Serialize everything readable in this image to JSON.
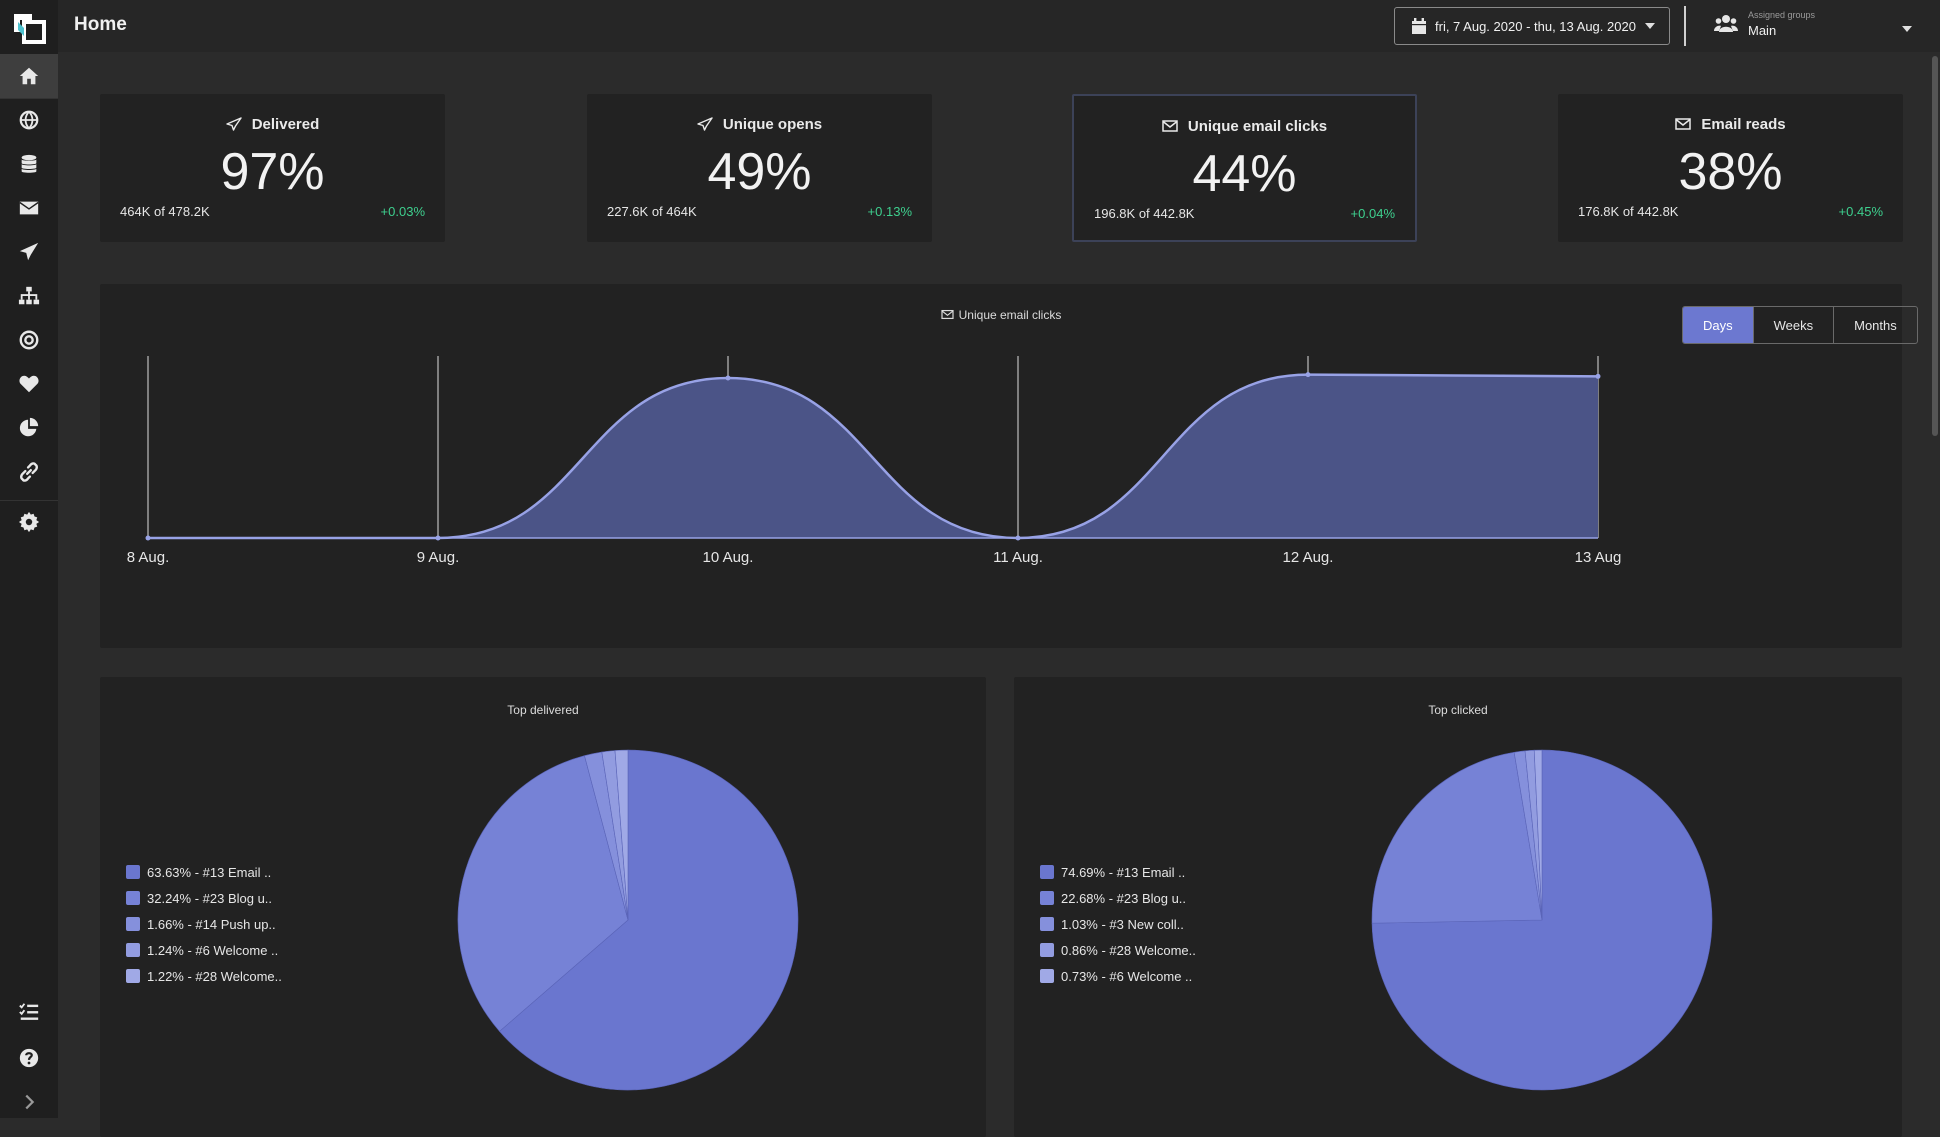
{
  "header": {
    "title": "Home",
    "date_range": "fri, 7 Aug. 2020 - thu, 13 Aug. 2020",
    "groups_label": "Assigned groups",
    "groups_value": "Main"
  },
  "sidebar": {
    "items": [
      {
        "name": "home-icon",
        "active": true
      },
      {
        "name": "globe-icon"
      },
      {
        "name": "database-icon"
      },
      {
        "name": "envelope-icon"
      },
      {
        "name": "paper-plane-icon"
      },
      {
        "name": "sitemap-icon"
      },
      {
        "name": "target-icon"
      },
      {
        "name": "heart-icon"
      },
      {
        "name": "pie-chart-icon"
      },
      {
        "name": "link-icon"
      },
      {
        "name": "gear-icon"
      },
      {
        "name": "task-list-icon"
      },
      {
        "name": "help-icon"
      },
      {
        "name": "chevron-right-icon"
      }
    ]
  },
  "kpis": [
    {
      "title": "Delivered",
      "icon": "paper-plane-icon",
      "value": "97%",
      "sub": "464K of 478.2K",
      "delta": "+0.03%"
    },
    {
      "title": "Unique opens",
      "icon": "paper-plane-icon",
      "value": "49%",
      "sub": "227.6K of 464K",
      "delta": "+0.13%"
    },
    {
      "title": "Unique email clicks",
      "icon": "envelope-icon",
      "value": "44%",
      "sub": "196.8K of 442.8K",
      "delta": "+0.04%"
    },
    {
      "title": "Email reads",
      "icon": "envelope-icon",
      "value": "38%",
      "sub": "176.8K of 442.8K",
      "delta": "+0.45%"
    }
  ],
  "timeline": {
    "title": "Unique email clicks",
    "buttons": [
      "Days",
      "Weeks",
      "Months"
    ],
    "active_button": "Days"
  },
  "chart_data": [
    {
      "type": "area",
      "title": "Unique email clicks",
      "x": [
        "8 Aug.",
        "9 Aug.",
        "10 Aug.",
        "11 Aug.",
        "12 Aug.",
        "13 Aug"
      ],
      "series": [
        {
          "values": [
            0,
            0,
            0.93,
            0,
            0.95,
            0.94
          ]
        }
      ],
      "ylim": [
        0,
        1
      ],
      "grid": "vertical",
      "color": "#4b5487",
      "line_color": "#98a2e6"
    },
    {
      "type": "pie",
      "title": "Top delivered",
      "labels": [
        "63.63% - #13 Email ..",
        "32.24% - #23 Blog u..",
        "1.66% - #14 Push up..",
        "1.24% - #6 Welcome ..",
        "1.22% - #28 Welcome.."
      ],
      "values": [
        63.63,
        32.24,
        1.66,
        1.24,
        1.22
      ],
      "colors": [
        "#6a76cf",
        "#7682d6",
        "#8590dc",
        "#929ce0",
        "#a0a9e6"
      ],
      "legend": "left"
    },
    {
      "type": "pie",
      "title": "Top clicked",
      "labels": [
        "74.69% - #13 Email ..",
        "22.68% - #23 Blog u..",
        "1.03% - #3 New coll..",
        "0.86% - #28 Welcome..",
        "0.73% - #6 Welcome .."
      ],
      "values": [
        74.69,
        22.68,
        1.03,
        0.86,
        0.73
      ],
      "colors": [
        "#6a76cf",
        "#7682d6",
        "#8590dc",
        "#929ce0",
        "#a0a9e6"
      ],
      "legend": "left"
    }
  ]
}
